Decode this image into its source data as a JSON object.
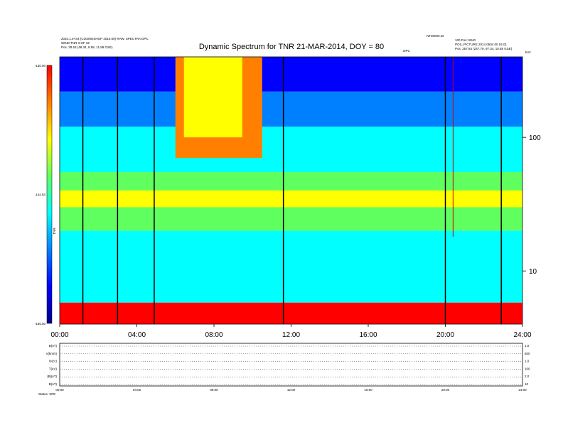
{
  "chart_data": {
    "type": "heatmap",
    "title": "Dynamic Spectrum for TNR 21-MAR-2014, DOY = 80",
    "header_left": [
      "2010.1.0+S4 (COSMOSHOP 2010.00) RAW. SPECTRA DPC",
      "WIND TNR 3 OF 32",
      "Pos: 28.53 (48.34, 8.58, 11.89 GSE)"
    ],
    "header_right": [
      "NT00000.40",
      "100 Pos: 5040",
      "POS_PICTURE 2014 0504 00 04 01",
      "Pos: 257.84 (247.79, 97.34, 10.88 GSE)"
    ],
    "spectrum_marker_label": "DPC",
    "colorbar": {
      "label": "TNR",
      "ticks": [
        "-130.00",
        "-142.50",
        "-155.00"
      ],
      "range": [
        -155.0,
        -130.0
      ],
      "colors": [
        "#00008b",
        "#0000ff",
        "#0080ff",
        "#00ffff",
        "#60ff60",
        "#ffff00",
        "#ff8000",
        "#ff0000"
      ]
    },
    "x": {
      "label": "",
      "ticks": [
        "00:00",
        "04:00",
        "08:00",
        "12:00",
        "16:00",
        "20:00",
        "24:00"
      ],
      "range_hours": [
        0,
        24
      ]
    },
    "y": {
      "label": "",
      "ticks": [
        "100",
        "10"
      ],
      "scale": "log",
      "range": [
        4,
        400
      ],
      "top_label": "kHz"
    },
    "bands": [
      {
        "f_low": 4,
        "f_high": 5.8,
        "value": -130.0
      },
      {
        "f_low": 5.8,
        "f_high": 20,
        "value": -143.5
      },
      {
        "f_low": 20,
        "f_high": 30,
        "value": -139.0
      },
      {
        "f_low": 30,
        "f_high": 40,
        "value": -136.5
      },
      {
        "f_low": 40,
        "f_high": 55,
        "value": -141.0
      },
      {
        "f_low": 55,
        "f_high": 120,
        "value": -145.5
      },
      {
        "f_low": 120,
        "f_high": 220,
        "value": -149.0
      },
      {
        "f_low": 220,
        "f_high": 400,
        "value": -153.0
      }
    ],
    "burst_hours": [
      6.0,
      10.5
    ],
    "dark_lines_hours": [
      1.2,
      3.0,
      4.9,
      11.6,
      20.0,
      22.9
    ],
    "red_line_hour": 20.4,
    "panels": {
      "left_labels": [
        "B(nT)",
        "V(km/s)",
        "N(cc)",
        "T(eV)",
        "|B|(nT)",
        "B(nT)"
      ],
      "right_labels": [
        "1.0",
        "500",
        "1.0",
        "100",
        "2.0",
        "10"
      ],
      "x_ticks": [
        "00:00",
        "04:00",
        "08:00",
        "12:00",
        "16:00",
        "20:00",
        "24:00"
      ],
      "footer_left": "Status: SPE"
    }
  }
}
